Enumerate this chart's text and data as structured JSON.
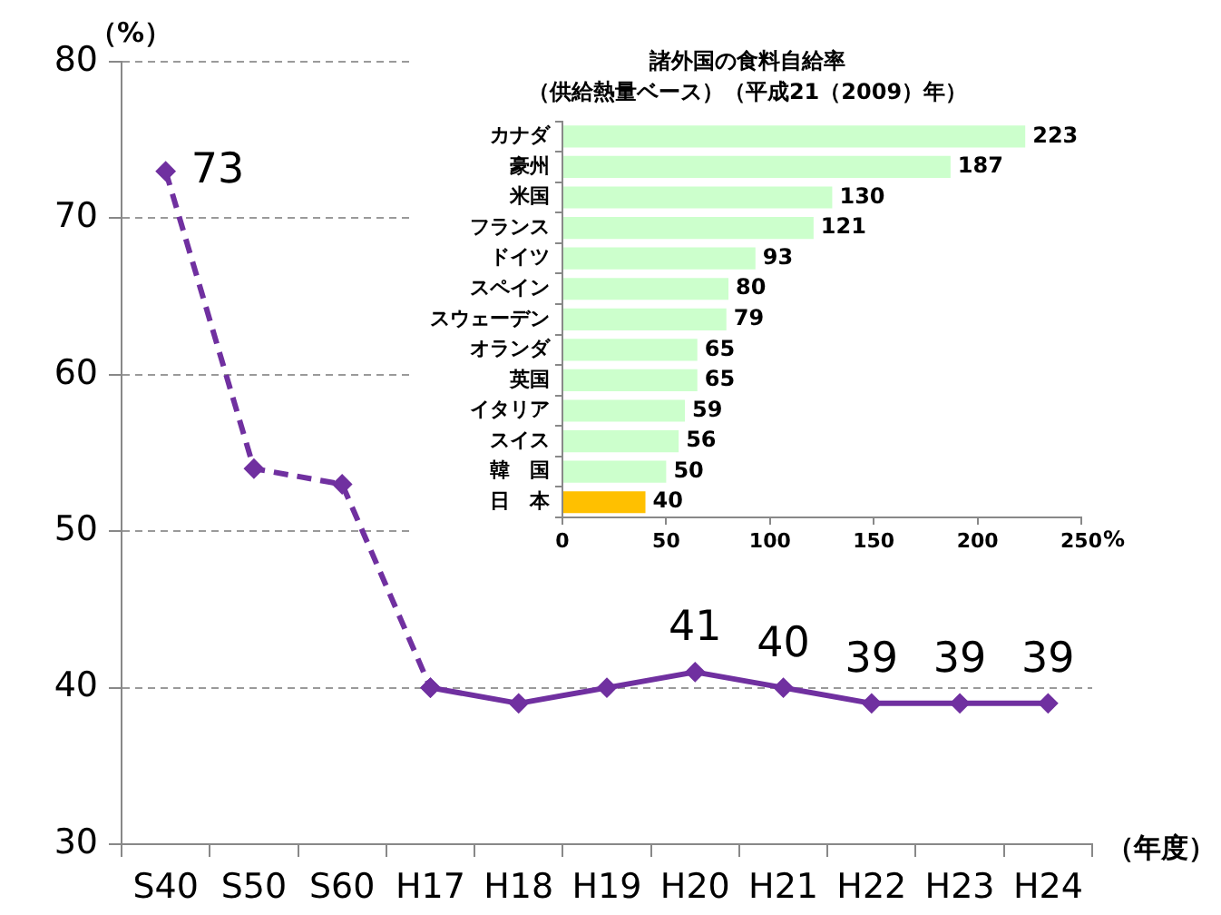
{
  "chart_data": [
    {
      "type": "line",
      "categories": [
        "S40",
        "S50",
        "S60",
        "H17",
        "H18",
        "H19",
        "H20",
        "H21",
        "H22",
        "H23",
        "H24"
      ],
      "series": [
        {
          "color": "#7030a0",
          "line_style": "dashed",
          "values": [
            73,
            54,
            53,
            40,
            null,
            null,
            null,
            null,
            null,
            null,
            null
          ],
          "value_labels": [
            "73",
            null,
            null,
            null,
            null,
            null,
            null,
            null,
            null,
            null,
            null
          ]
        },
        {
          "color": "#7030a0",
          "line_style": "solid",
          "values": [
            null,
            null,
            null,
            40,
            39,
            40,
            41,
            40,
            39,
            39,
            39
          ],
          "value_labels": [
            null,
            null,
            null,
            null,
            null,
            null,
            "41",
            "40",
            "39",
            "39",
            "39"
          ]
        }
      ],
      "ylabel": "（%）",
      "xlabel": "（年度）",
      "ylim": [
        30,
        80
      ],
      "yticks": [
        30,
        40,
        50,
        60,
        70,
        80
      ],
      "grid": "y",
      "marker": "diamond"
    },
    {
      "type": "bar",
      "orientation": "horizontal",
      "title": "諸外国の食料自給率",
      "subtitle": "（供給熱量ベース）（平成21（2009）年）",
      "categories": [
        "カナダ",
        "豪州",
        "米国",
        "フランス",
        "ドイツ",
        "スペイン",
        "スウェーデン",
        "オランダ",
        "英国",
        "イタリア",
        "スイス",
        "韓　国",
        "日　本"
      ],
      "values": [
        223,
        187,
        130,
        121,
        93,
        80,
        79,
        65,
        65,
        59,
        56,
        50,
        40
      ],
      "colors": [
        "#ccffcc",
        "#ccffcc",
        "#ccffcc",
        "#ccffcc",
        "#ccffcc",
        "#ccffcc",
        "#ccffcc",
        "#ccffcc",
        "#ccffcc",
        "#ccffcc",
        "#ccffcc",
        "#ccffcc",
        "#ffc000"
      ],
      "xlim": [
        0,
        250
      ],
      "xticks": [
        0,
        50,
        100,
        150,
        200,
        250
      ],
      "xlabel": "%",
      "data_labels": true
    }
  ]
}
